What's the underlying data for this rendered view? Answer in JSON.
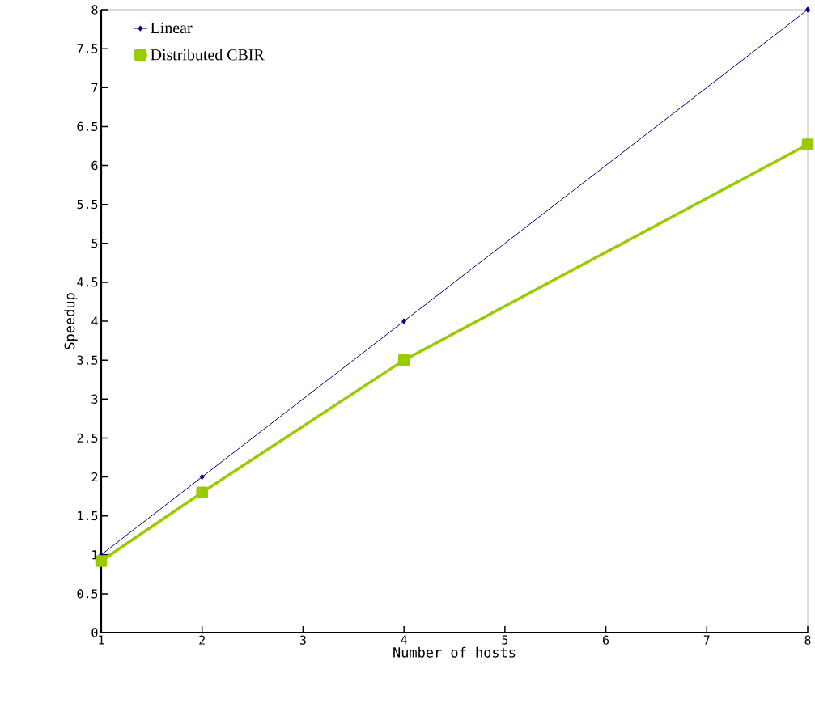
{
  "chart_data": {
    "type": "line",
    "xlabel": "Number of hosts",
    "ylabel": "Speedup",
    "x": [
      1,
      2,
      4,
      8
    ],
    "series": [
      {
        "name": "Linear",
        "color": "#000080",
        "values": [
          1,
          2,
          4,
          8
        ],
        "marker": "diamond"
      },
      {
        "name": "Distributed CBIR",
        "color": "#99cc00",
        "values": [
          0.92,
          1.8,
          3.5,
          6.27
        ],
        "marker": "square"
      }
    ],
    "xlim": [
      1,
      8
    ],
    "xticks": [
      1,
      2,
      3,
      4,
      5,
      6,
      7,
      8
    ],
    "ylim": [
      0,
      8
    ],
    "yticks": [
      0,
      0.5,
      1,
      1.5,
      2,
      2.5,
      3,
      3.5,
      4,
      4.5,
      5,
      5.5,
      6,
      6.5,
      7,
      7.5,
      8
    ],
    "grid": false,
    "legend": "top left",
    "line_style": "solid"
  }
}
